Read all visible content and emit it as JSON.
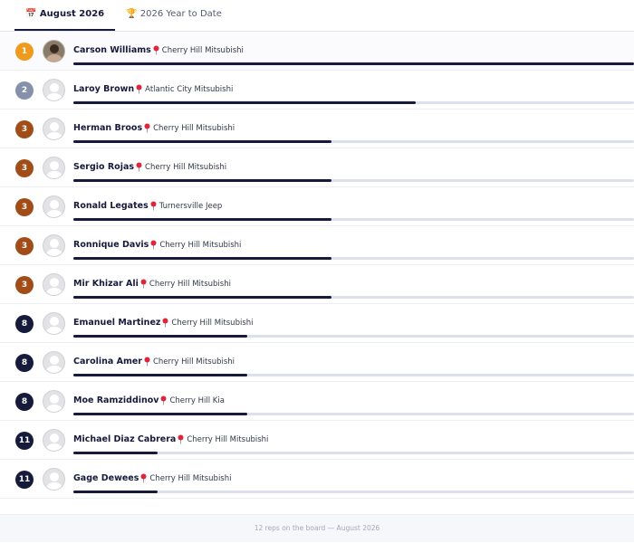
{
  "tabs": [
    {
      "label": "📅 August 2026",
      "active": true
    },
    {
      "label": "🏆 2026 Year to Date",
      "active": false
    }
  ],
  "rows": [
    {
      "rank": 1,
      "name": "Carson Williams",
      "location": "Cherry Hill Mitsubishi",
      "progress": 100,
      "badge_color": "#ef9a1a",
      "has_photo": true
    },
    {
      "rank": 2,
      "name": "Laroy Brown",
      "location": "Atlantic City Mitsubishi",
      "progress": 61,
      "badge_color": "#8590ab",
      "has_photo": false
    },
    {
      "rank": 3,
      "name": "Herman Broos",
      "location": "Cherry Hill Mitsubishi",
      "progress": 46,
      "badge_color": "#a24c17",
      "has_photo": false
    },
    {
      "rank": 3,
      "name": "Sergio Rojas",
      "location": "Cherry Hill Mitsubishi",
      "progress": 46,
      "badge_color": "#a24c17",
      "has_photo": false
    },
    {
      "rank": 3,
      "name": "Ronald Legates",
      "location": "Turnersville Jeep",
      "progress": 46,
      "badge_color": "#a24c17",
      "has_photo": false
    },
    {
      "rank": 3,
      "name": "Ronnique Davis",
      "location": "Cherry Hill Mitsubishi",
      "progress": 46,
      "badge_color": "#a24c17",
      "has_photo": false
    },
    {
      "rank": 3,
      "name": "Mir Khizar Ali",
      "location": "Cherry Hill Mitsubishi",
      "progress": 46,
      "badge_color": "#a24c17",
      "has_photo": false
    },
    {
      "rank": 8,
      "name": "Emanuel Martinez",
      "location": "Cherry Hill Mitsubishi",
      "progress": 31,
      "badge_color": "#161a3b",
      "has_photo": false
    },
    {
      "rank": 8,
      "name": "Carolina Amer",
      "location": "Cherry Hill Mitsubishi",
      "progress": 31,
      "badge_color": "#161a3b",
      "has_photo": false
    },
    {
      "rank": 8,
      "name": "Moe Ramziddinov",
      "location": "Cherry Hill Kia",
      "progress": 31,
      "badge_color": "#161a3b",
      "has_photo": false
    },
    {
      "rank": 11,
      "name": "Michael Diaz Cabrera",
      "location": "Cherry Hill Mitsubishi",
      "progress": 15,
      "badge_color": "#161a3b",
      "has_photo": false
    },
    {
      "rank": 11,
      "name": "Gage Dewees",
      "location": "Cherry Hill Mitsubishi",
      "progress": 15,
      "badge_color": "#161a3b",
      "has_photo": false
    }
  ],
  "footer": "12 reps on the board — August 2026"
}
